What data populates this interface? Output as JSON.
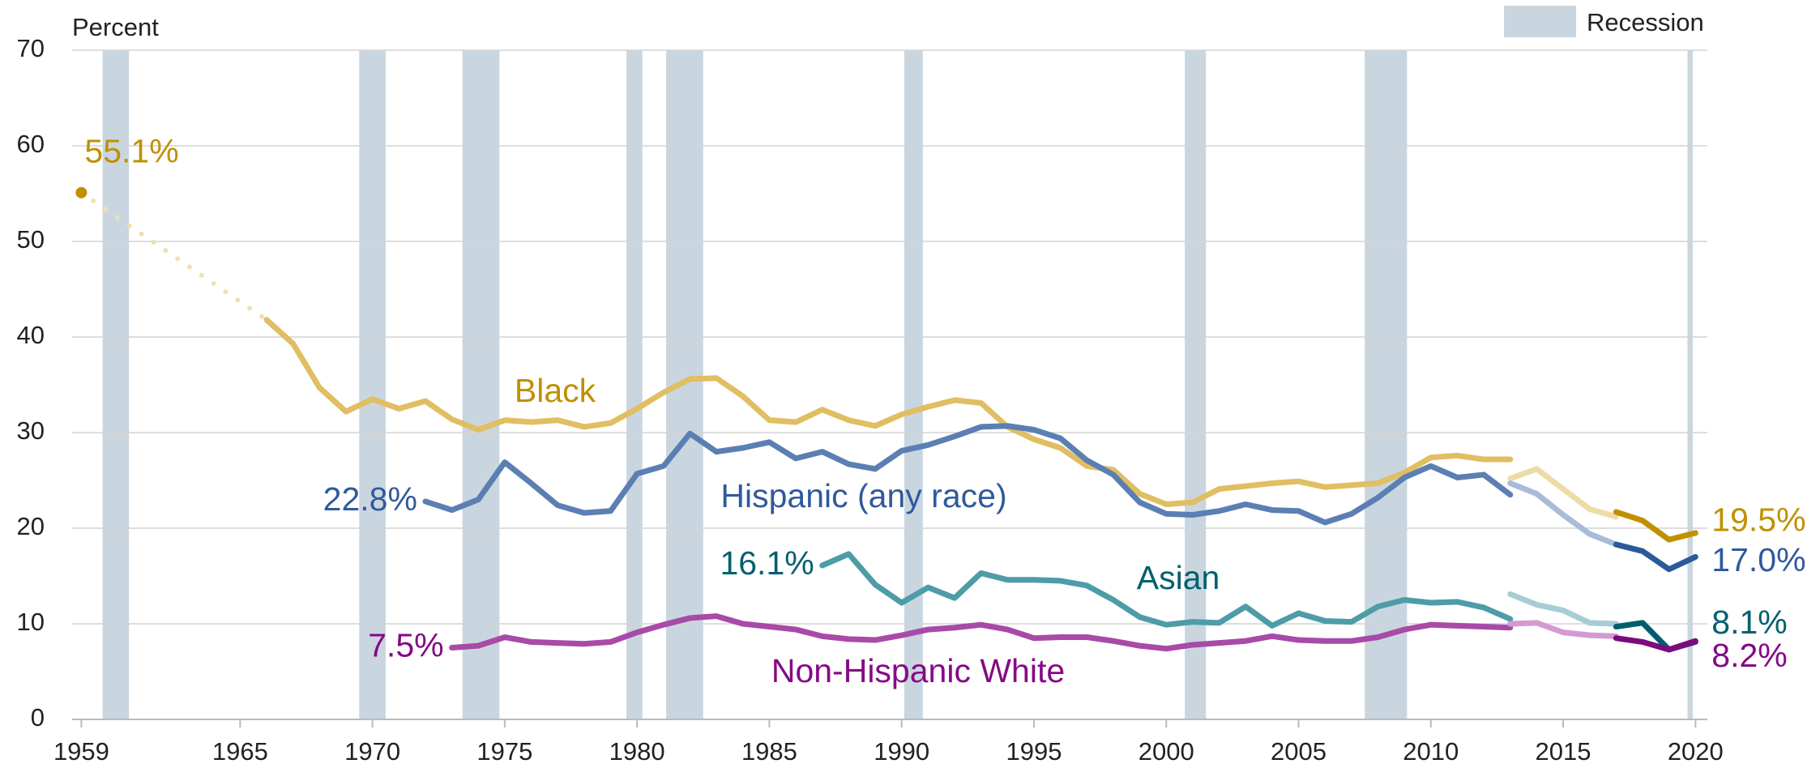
{
  "chart_data": {
    "type": "line",
    "y_axis_label": "Percent",
    "xlim": [
      1958.65,
      2020.45
    ],
    "xticks": [
      1959,
      1965,
      1970,
      1975,
      1980,
      1985,
      1990,
      1995,
      2000,
      2005,
      2010,
      2015,
      2020
    ],
    "ylim": [
      0,
      70
    ],
    "yticks": [
      0,
      10,
      20,
      30,
      40,
      50,
      60,
      70
    ],
    "grid": true,
    "recession_label": "Recession",
    "recession_color": "#c9d6e0",
    "recessions": [
      [
        1959.8,
        1960.8
      ],
      [
        1969.5,
        1970.5
      ],
      [
        1973.4,
        1974.8
      ],
      [
        1979.6,
        1980.2
      ],
      [
        1981.1,
        1982.5
      ],
      [
        1990.1,
        1990.8
      ],
      [
        2000.7,
        2001.5
      ],
      [
        2007.5,
        2009.1
      ],
      [
        2019.7,
        2019.9
      ]
    ],
    "series": [
      {
        "name": "Black",
        "label_color": "#c09000",
        "segments": [
          {
            "line_style": "dotted",
            "start_marker": true,
            "color": "#efe0b0",
            "x": [
              1959,
              1966
            ],
            "values": [
              55.1,
              41.8
            ],
            "value_labels": [
              "55.1%",
              null
            ]
          },
          {
            "color": "#e0be62",
            "x": [
              1966,
              1967,
              1968,
              1969,
              1970,
              1971,
              1972,
              1973,
              1974,
              1975,
              1976,
              1977,
              1978,
              1979,
              1980,
              1981,
              1982,
              1983,
              1984,
              1985,
              1986,
              1987,
              1988,
              1989,
              1990,
              1991,
              1992,
              1993,
              1994,
              1995,
              1996,
              1997,
              1998,
              1999,
              2000,
              2001,
              2002,
              2003,
              2004,
              2005,
              2006,
              2007,
              2008,
              2009,
              2010,
              2011,
              2012,
              2013
            ],
            "values": [
              41.8,
              39.3,
              34.7,
              32.2,
              33.5,
              32.5,
              33.3,
              31.4,
              30.3,
              31.3,
              31.1,
              31.3,
              30.6,
              31.0,
              32.5,
              34.2,
              35.6,
              35.7,
              33.8,
              31.3,
              31.1,
              32.4,
              31.3,
              30.7,
              31.9,
              32.7,
              33.4,
              33.1,
              30.6,
              29.3,
              28.4,
              26.5,
              26.1,
              23.6,
              22.5,
              22.7,
              24.1,
              24.4,
              24.7,
              24.9,
              24.3,
              24.5,
              24.7,
              25.8,
              27.4,
              27.6,
              27.2,
              27.2
            ]
          },
          {
            "color": "#ecdca6",
            "x": [
              2013,
              2014,
              2015,
              2016,
              2017
            ],
            "values": [
              25.2,
              26.2,
              24.1,
              22.0,
              21.2
            ]
          },
          {
            "color": "#c09000",
            "x": [
              2017,
              2018,
              2019,
              2020
            ],
            "values": [
              21.7,
              20.8,
              18.8,
              19.5
            ],
            "value_labels": [
              null,
              null,
              null,
              "19.5%"
            ]
          }
        ]
      },
      {
        "name": "Hispanic (any race)",
        "label_color": "#2f5a9c",
        "segments": [
          {
            "color": "#5b7fb3",
            "x": [
              1972,
              1973,
              1974,
              1975,
              1976,
              1977,
              1978,
              1979,
              1980,
              1981,
              1982,
              1983,
              1984,
              1985,
              1986,
              1987,
              1988,
              1989,
              1990,
              1991,
              1992,
              1993,
              1994,
              1995,
              1996,
              1997,
              1998,
              1999,
              2000,
              2001,
              2002,
              2003,
              2004,
              2005,
              2006,
              2007,
              2008,
              2009,
              2010,
              2011,
              2012,
              2013
            ],
            "values": [
              22.8,
              21.9,
              23.0,
              26.9,
              24.7,
              22.4,
              21.6,
              21.8,
              25.7,
              26.5,
              29.9,
              28.0,
              28.4,
              29.0,
              27.3,
              28.0,
              26.7,
              26.2,
              28.1,
              28.7,
              29.6,
              30.6,
              30.7,
              30.3,
              29.4,
              27.1,
              25.6,
              22.7,
              21.5,
              21.4,
              21.8,
              22.5,
              21.9,
              21.8,
              20.6,
              21.5,
              23.2,
              25.3,
              26.5,
              25.3,
              25.6,
              23.5
            ],
            "value_labels": [
              "22.8%",
              null,
              null,
              null,
              null,
              null,
              null,
              null,
              null,
              null,
              null,
              null,
              null,
              null,
              null,
              null,
              null,
              null,
              null,
              null,
              null,
              null,
              null,
              null,
              null,
              null,
              null,
              null,
              null,
              null,
              null,
              null,
              null,
              null,
              null,
              null,
              null,
              null,
              null,
              null,
              null,
              null
            ]
          },
          {
            "color": "#a8bcd8",
            "x": [
              2013,
              2014,
              2015,
              2016,
              2017
            ],
            "values": [
              24.7,
              23.6,
              21.4,
              19.4,
              18.3
            ]
          },
          {
            "color": "#2b5a9a",
            "x": [
              2017,
              2018,
              2019,
              2020
            ],
            "values": [
              18.3,
              17.6,
              15.7,
              17.0
            ],
            "value_labels": [
              null,
              null,
              null,
              "17.0%"
            ]
          }
        ]
      },
      {
        "name": "Asian",
        "label_color": "#00606e",
        "segments": [
          {
            "color": "#4d9ca8",
            "x": [
              1987,
              1988,
              1989,
              1990,
              1991,
              1992,
              1993,
              1994,
              1995,
              1996,
              1997,
              1998,
              1999,
              2000,
              2001,
              2002,
              2003,
              2004,
              2005,
              2006,
              2007,
              2008,
              2009,
              2010,
              2011,
              2012,
              2013
            ],
            "values": [
              16.1,
              17.3,
              14.1,
              12.2,
              13.8,
              12.7,
              15.3,
              14.6,
              14.6,
              14.5,
              14.0,
              12.5,
              10.7,
              9.9,
              10.2,
              10.1,
              11.8,
              9.8,
              11.1,
              10.3,
              10.2,
              11.8,
              12.5,
              12.2,
              12.3,
              11.7,
              10.5
            ],
            "value_labels": [
              "16.1%",
              null,
              null,
              null,
              null,
              null,
              null,
              null,
              null,
              null,
              null,
              null,
              null,
              null,
              null,
              null,
              null,
              null,
              null,
              null,
              null,
              null,
              null,
              null,
              null,
              null,
              null
            ]
          },
          {
            "color": "#a6cdd4",
            "x": [
              2013,
              2014,
              2015,
              2016,
              2017
            ],
            "values": [
              13.1,
              12.0,
              11.4,
              10.1,
              10.0
            ]
          },
          {
            "color": "#005d6e",
            "x": [
              2017,
              2018,
              2019,
              2020
            ],
            "values": [
              9.7,
              10.1,
              7.3,
              8.1
            ],
            "value_labels": [
              null,
              null,
              null,
              "8.1%"
            ]
          }
        ]
      },
      {
        "name": "Non-Hispanic White",
        "label_color": "#850a85",
        "segments": [
          {
            "color": "#a84aa8",
            "x": [
              1973,
              1974,
              1975,
              1976,
              1977,
              1978,
              1979,
              1980,
              1981,
              1982,
              1983,
              1984,
              1985,
              1986,
              1987,
              1988,
              1989,
              1990,
              1991,
              1992,
              1993,
              1994,
              1995,
              1996,
              1997,
              1998,
              1999,
              2000,
              2001,
              2002,
              2003,
              2004,
              2005,
              2006,
              2007,
              2008,
              2009,
              2010,
              2011,
              2012,
              2013
            ],
            "values": [
              7.5,
              7.7,
              8.6,
              8.1,
              8.0,
              7.9,
              8.1,
              9.1,
              9.9,
              10.6,
              10.8,
              10.0,
              9.7,
              9.4,
              8.7,
              8.4,
              8.3,
              8.8,
              9.4,
              9.6,
              9.9,
              9.4,
              8.5,
              8.6,
              8.6,
              8.2,
              7.7,
              7.4,
              7.8,
              8.0,
              8.2,
              8.7,
              8.3,
              8.2,
              8.2,
              8.6,
              9.4,
              9.9,
              9.8,
              9.7,
              9.6
            ],
            "value_labels": [
              "7.5%",
              null,
              null,
              null,
              null,
              null,
              null,
              null,
              null,
              null,
              null,
              null,
              null,
              null,
              null,
              null,
              null,
              null,
              null,
              null,
              null,
              null,
              null,
              null,
              null,
              null,
              null,
              null,
              null,
              null,
              null,
              null,
              null,
              null,
              null,
              null,
              null,
              null,
              null,
              null,
              null
            ]
          },
          {
            "color": "#d49ad4",
            "x": [
              2013,
              2014,
              2015,
              2016,
              2017
            ],
            "values": [
              10.0,
              10.1,
              9.1,
              8.8,
              8.7
            ]
          },
          {
            "color": "#7d0a7d",
            "x": [
              2017,
              2018,
              2019,
              2020
            ],
            "values": [
              8.5,
              8.1,
              7.3,
              8.2
            ],
            "value_labels": [
              null,
              null,
              null,
              "8.2%"
            ]
          }
        ]
      }
    ]
  }
}
